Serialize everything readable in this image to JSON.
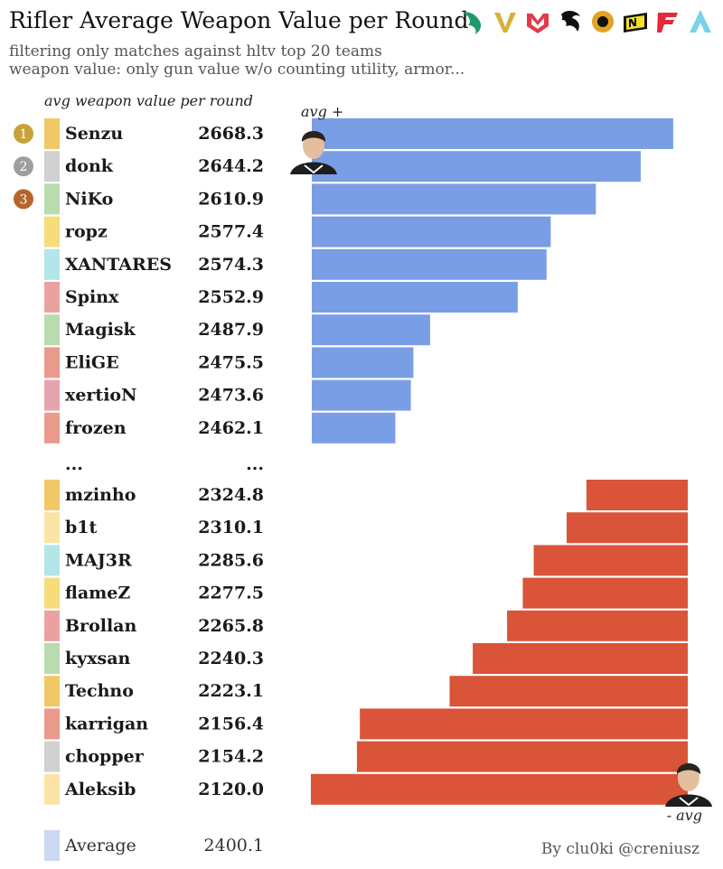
{
  "title": "Rifler Average Weapon Value per Round",
  "subtitle_1": "filtering only matches against hltv top 20 teams",
  "subtitle_2": "weapon value: only gun value w/o counting utility, armor...",
  "team_logos": [
    {
      "name": "falcons-logo",
      "color": "#1f9a6a"
    },
    {
      "name": "vitality-logo",
      "color": "#d9b13a"
    },
    {
      "name": "mouz-logo",
      "color": "#e23a4a"
    },
    {
      "name": "spirit-logo",
      "color": "#111111"
    },
    {
      "name": "mongolz-logo",
      "color": "#e3a320"
    },
    {
      "name": "navi-logo",
      "color": "#f2df2b"
    },
    {
      "name": "faze-logo",
      "color": "#e5293a"
    },
    {
      "name": "liquid-logo",
      "color": "#79d2ea"
    }
  ],
  "credit": "By clu0ki @creniusz",
  "chart_data": {
    "type": "bar",
    "title": "Rifler Average Weapon Value per Round",
    "column_header": "avg weapon value per round",
    "average": {
      "label": "Average",
      "value": 2400.1,
      "color": "#ccd9f3"
    },
    "ellipsis": {
      "name": "...",
      "value": "..."
    },
    "annot_top": "avg +",
    "annot_bottom": "- avg",
    "top_color": "#7a9ee6",
    "bottom_color": "#d95438",
    "top": [
      {
        "rank": "1",
        "name": "Senzu",
        "value": 2668.3,
        "team_color": "#f2c866"
      },
      {
        "rank": "2",
        "name": "donk",
        "value": 2644.2,
        "team_color": "#d0d0d0"
      },
      {
        "rank": "3",
        "name": "NiKo",
        "value": 2610.9,
        "team_color": "#b8dcae"
      },
      {
        "name": "ropz",
        "value": 2577.4,
        "team_color": "#f7dc7a"
      },
      {
        "name": "XANTARES",
        "value": 2574.3,
        "team_color": "#b3e6e8"
      },
      {
        "name": "Spinx",
        "value": 2552.9,
        "team_color": "#e9a1a1"
      },
      {
        "name": "Magisk",
        "value": 2487.9,
        "team_color": "#b8dcae"
      },
      {
        "name": "EliGE",
        "value": 2475.5,
        "team_color": "#e99a8c"
      },
      {
        "name": "xertioN",
        "value": 2473.6,
        "team_color": "#e6a5ae"
      },
      {
        "name": "frozen",
        "value": 2462.1,
        "team_color": "#e99a8c"
      }
    ],
    "bottom": [
      {
        "name": "mzinho",
        "value": 2324.8,
        "team_color": "#f2c866"
      },
      {
        "name": "b1t",
        "value": 2310.1,
        "team_color": "#fbe3a6"
      },
      {
        "name": "MAJ3R",
        "value": 2285.6,
        "team_color": "#b3e6e8"
      },
      {
        "name": "flameZ",
        "value": 2277.5,
        "team_color": "#f7dc7a"
      },
      {
        "name": "Brollan",
        "value": 2265.8,
        "team_color": "#e9a1a1"
      },
      {
        "name": "kyxsan",
        "value": 2240.3,
        "team_color": "#b8dcae"
      },
      {
        "name": "Techno",
        "value": 2223.1,
        "team_color": "#f2c866"
      },
      {
        "name": "karrigan",
        "value": 2156.4,
        "team_color": "#e99a8c"
      },
      {
        "name": "chopper",
        "value": 2154.2,
        "team_color": "#d0d0d0"
      },
      {
        "name": "Aleksib",
        "value": 2120.0,
        "team_color": "#fbe3a6"
      }
    ]
  }
}
